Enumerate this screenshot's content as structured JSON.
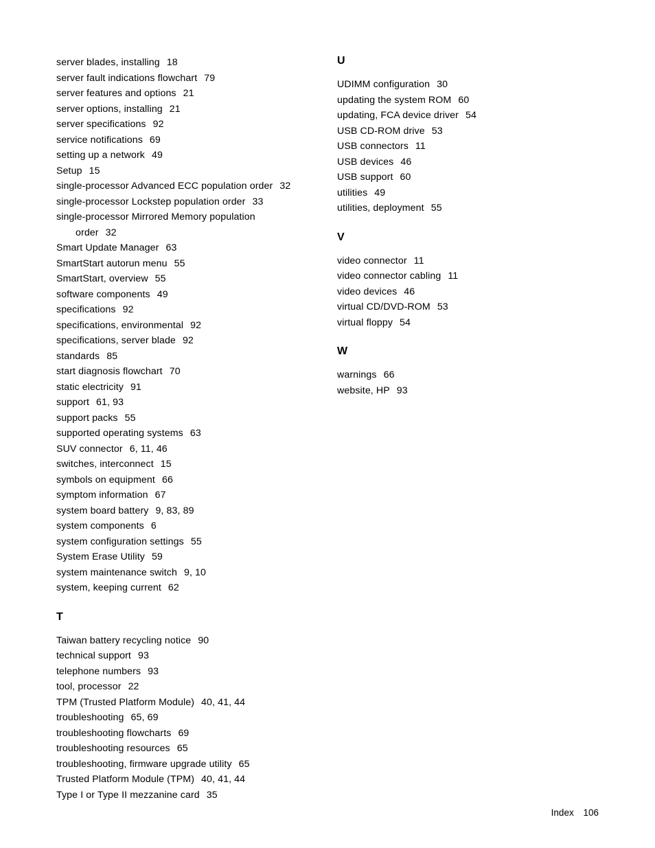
{
  "columns": [
    {
      "sections": [
        {
          "heading": null,
          "entries": [
            {
              "term": "server blades, installing",
              "pages": "18",
              "cont": false
            },
            {
              "term": "server fault indications flowchart",
              "pages": "79",
              "cont": false
            },
            {
              "term": "server features and options",
              "pages": "21",
              "cont": false
            },
            {
              "term": "server options, installing",
              "pages": "21",
              "cont": false
            },
            {
              "term": "server specifications",
              "pages": "92",
              "cont": false
            },
            {
              "term": "service notifications",
              "pages": "69",
              "cont": false
            },
            {
              "term": "setting up a network",
              "pages": "49",
              "cont": false
            },
            {
              "term": "Setup",
              "pages": "15",
              "cont": false
            },
            {
              "term": "single-processor Advanced ECC population order",
              "pages": "32",
              "cont": false
            },
            {
              "term": "single-processor Lockstep population order",
              "pages": "33",
              "cont": false
            },
            {
              "term": "single-processor Mirrored Memory population",
              "pages": "",
              "cont": false
            },
            {
              "term": "order",
              "pages": "32",
              "cont": true
            },
            {
              "term": "Smart Update Manager",
              "pages": "63",
              "cont": false
            },
            {
              "term": "SmartStart autorun menu",
              "pages": "55",
              "cont": false
            },
            {
              "term": "SmartStart, overview",
              "pages": "55",
              "cont": false
            },
            {
              "term": "software components",
              "pages": "49",
              "cont": false
            },
            {
              "term": "specifications",
              "pages": "92",
              "cont": false
            },
            {
              "term": "specifications, environmental",
              "pages": "92",
              "cont": false
            },
            {
              "term": "specifications, server blade",
              "pages": "92",
              "cont": false
            },
            {
              "term": "standards",
              "pages": "85",
              "cont": false
            },
            {
              "term": "start diagnosis flowchart",
              "pages": "70",
              "cont": false
            },
            {
              "term": "static electricity",
              "pages": "91",
              "cont": false
            },
            {
              "term": "support",
              "pages": "61, 93",
              "cont": false
            },
            {
              "term": "support packs",
              "pages": "55",
              "cont": false
            },
            {
              "term": "supported operating systems",
              "pages": "63",
              "cont": false
            },
            {
              "term": "SUV connector",
              "pages": "6, 11, 46",
              "cont": false
            },
            {
              "term": "switches, interconnect",
              "pages": "15",
              "cont": false
            },
            {
              "term": "symbols on equipment",
              "pages": "66",
              "cont": false
            },
            {
              "term": "symptom information",
              "pages": "67",
              "cont": false
            },
            {
              "term": "system board battery",
              "pages": "9, 83, 89",
              "cont": false
            },
            {
              "term": "system components",
              "pages": "6",
              "cont": false
            },
            {
              "term": "system configuration settings",
              "pages": "55",
              "cont": false
            },
            {
              "term": "System Erase Utility",
              "pages": "59",
              "cont": false
            },
            {
              "term": "system maintenance switch",
              "pages": "9, 10",
              "cont": false
            },
            {
              "term": "system, keeping current",
              "pages": "62",
              "cont": false
            }
          ]
        },
        {
          "heading": "T",
          "entries": [
            {
              "term": "Taiwan battery recycling notice",
              "pages": "90",
              "cont": false
            },
            {
              "term": "technical support",
              "pages": "93",
              "cont": false
            },
            {
              "term": "telephone numbers",
              "pages": "93",
              "cont": false
            },
            {
              "term": "tool, processor",
              "pages": "22",
              "cont": false
            },
            {
              "term": "TPM (Trusted Platform Module)",
              "pages": "40, 41, 44",
              "cont": false
            },
            {
              "term": "troubleshooting",
              "pages": "65, 69",
              "cont": false
            },
            {
              "term": "troubleshooting flowcharts",
              "pages": "69",
              "cont": false
            },
            {
              "term": "troubleshooting resources",
              "pages": "65",
              "cont": false
            },
            {
              "term": "troubleshooting, firmware upgrade utility",
              "pages": "65",
              "cont": false
            },
            {
              "term": "Trusted Platform Module (TPM)",
              "pages": "40, 41, 44",
              "cont": false
            },
            {
              "term": "Type I or Type II mezzanine card",
              "pages": "35",
              "cont": false
            }
          ]
        }
      ]
    },
    {
      "sections": [
        {
          "heading": "U",
          "entries": [
            {
              "term": "UDIMM configuration",
              "pages": "30",
              "cont": false
            },
            {
              "term": "updating the system ROM",
              "pages": "60",
              "cont": false
            },
            {
              "term": "updating, FCA device driver",
              "pages": "54",
              "cont": false
            },
            {
              "term": "USB CD-ROM drive",
              "pages": "53",
              "cont": false
            },
            {
              "term": "USB connectors",
              "pages": "11",
              "cont": false
            },
            {
              "term": "USB devices",
              "pages": "46",
              "cont": false
            },
            {
              "term": "USB support",
              "pages": "60",
              "cont": false
            },
            {
              "term": "utilities",
              "pages": "49",
              "cont": false
            },
            {
              "term": "utilities, deployment",
              "pages": "55",
              "cont": false
            }
          ]
        },
        {
          "heading": "V",
          "entries": [
            {
              "term": "video connector",
              "pages": "11",
              "cont": false
            },
            {
              "term": "video connector cabling",
              "pages": "11",
              "cont": false
            },
            {
              "term": "video devices",
              "pages": "46",
              "cont": false
            },
            {
              "term": "virtual CD/DVD-ROM",
              "pages": "53",
              "cont": false
            },
            {
              "term": "virtual floppy",
              "pages": "54",
              "cont": false
            }
          ]
        },
        {
          "heading": "W",
          "entries": [
            {
              "term": "warnings",
              "pages": "66",
              "cont": false
            },
            {
              "term": "website, HP",
              "pages": "93",
              "cont": false
            }
          ]
        }
      ]
    }
  ],
  "footer": {
    "label": "Index",
    "page_number": "106"
  }
}
